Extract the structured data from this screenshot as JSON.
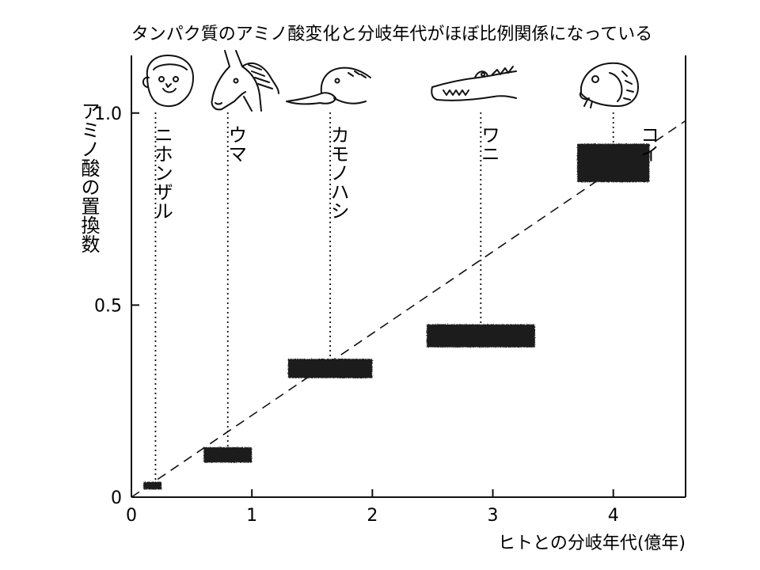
{
  "chart_data": {
    "type": "scatter",
    "title": "タンパク質のアミノ酸変化と分岐年代がほぼ比例関係になっている",
    "xlabel": "ヒトとの分岐年代(億年)",
    "ylabel": "アミノ酸の置換数",
    "xlim": [
      0,
      4.6
    ],
    "ylim": [
      0,
      1.15
    ],
    "x_ticks": [
      {
        "value": 0,
        "label": "0"
      },
      {
        "value": 1,
        "label": "1"
      },
      {
        "value": 2,
        "label": "2"
      },
      {
        "value": 3,
        "label": "3"
      },
      {
        "value": 4,
        "label": "4"
      }
    ],
    "y_ticks": [
      {
        "value": 0,
        "label": "0"
      },
      {
        "value": 0.5,
        "label": "0.5"
      },
      {
        "value": 1.0,
        "label": "1.0"
      }
    ],
    "grid": false,
    "trend_line": {
      "style": "dashed",
      "from": [
        0,
        0
      ],
      "to": [
        4.6,
        0.98
      ]
    },
    "points": [
      {
        "name": "ニホンザル",
        "x": 0.2,
        "x_range": [
          0.1,
          0.25
        ],
        "y_range": [
          0.02,
          0.04
        ]
      },
      {
        "name": "ウマ",
        "x": 0.8,
        "x_range": [
          0.6,
          1.0
        ],
        "y_range": [
          0.09,
          0.13
        ]
      },
      {
        "name": "カモノハシ",
        "x": 1.65,
        "x_range": [
          1.3,
          2.0
        ],
        "y_range": [
          0.31,
          0.36
        ]
      },
      {
        "name": "ワニ",
        "x": 2.9,
        "x_range": [
          2.45,
          3.35
        ],
        "y_range": [
          0.39,
          0.45
        ]
      },
      {
        "name": "コイ",
        "x": 4.0,
        "x_range": [
          3.7,
          4.3
        ],
        "y_range": [
          0.82,
          0.92
        ]
      }
    ],
    "animals": [
      {
        "name": "ニホンザル",
        "icon": "monkey-icon"
      },
      {
        "name": "ウマ",
        "icon": "horse-icon"
      },
      {
        "name": "カモノハシ",
        "icon": "platypus-icon"
      },
      {
        "name": "ワニ",
        "icon": "crocodile-icon"
      },
      {
        "name": "コイ",
        "icon": "carp-icon"
      }
    ]
  }
}
